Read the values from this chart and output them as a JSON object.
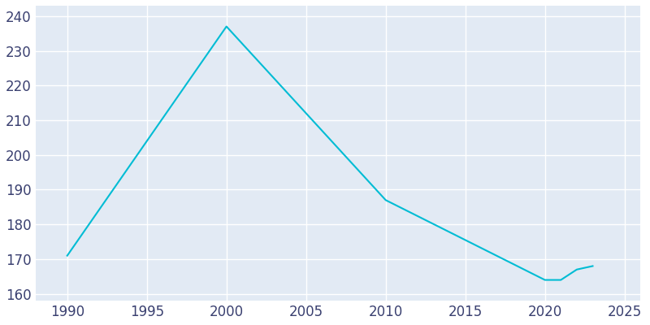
{
  "years": [
    1990,
    2000,
    2010,
    2020,
    2021,
    2022,
    2023
  ],
  "population": [
    171,
    237,
    187,
    164,
    164,
    167,
    168
  ],
  "line_color": "#00BCD4",
  "background_color": "#FFFFFF",
  "plot_background_color": "#E2EAF4",
  "grid_color": "#FFFFFF",
  "xlim": [
    1988,
    2026
  ],
  "ylim": [
    158,
    243
  ],
  "yticks": [
    160,
    170,
    180,
    190,
    200,
    210,
    220,
    230,
    240
  ],
  "xticks": [
    1990,
    1995,
    2000,
    2005,
    2010,
    2015,
    2020,
    2025
  ],
  "linewidth": 1.5,
  "tick_label_color": "#3A4070",
  "tick_label_fontsize": 12
}
